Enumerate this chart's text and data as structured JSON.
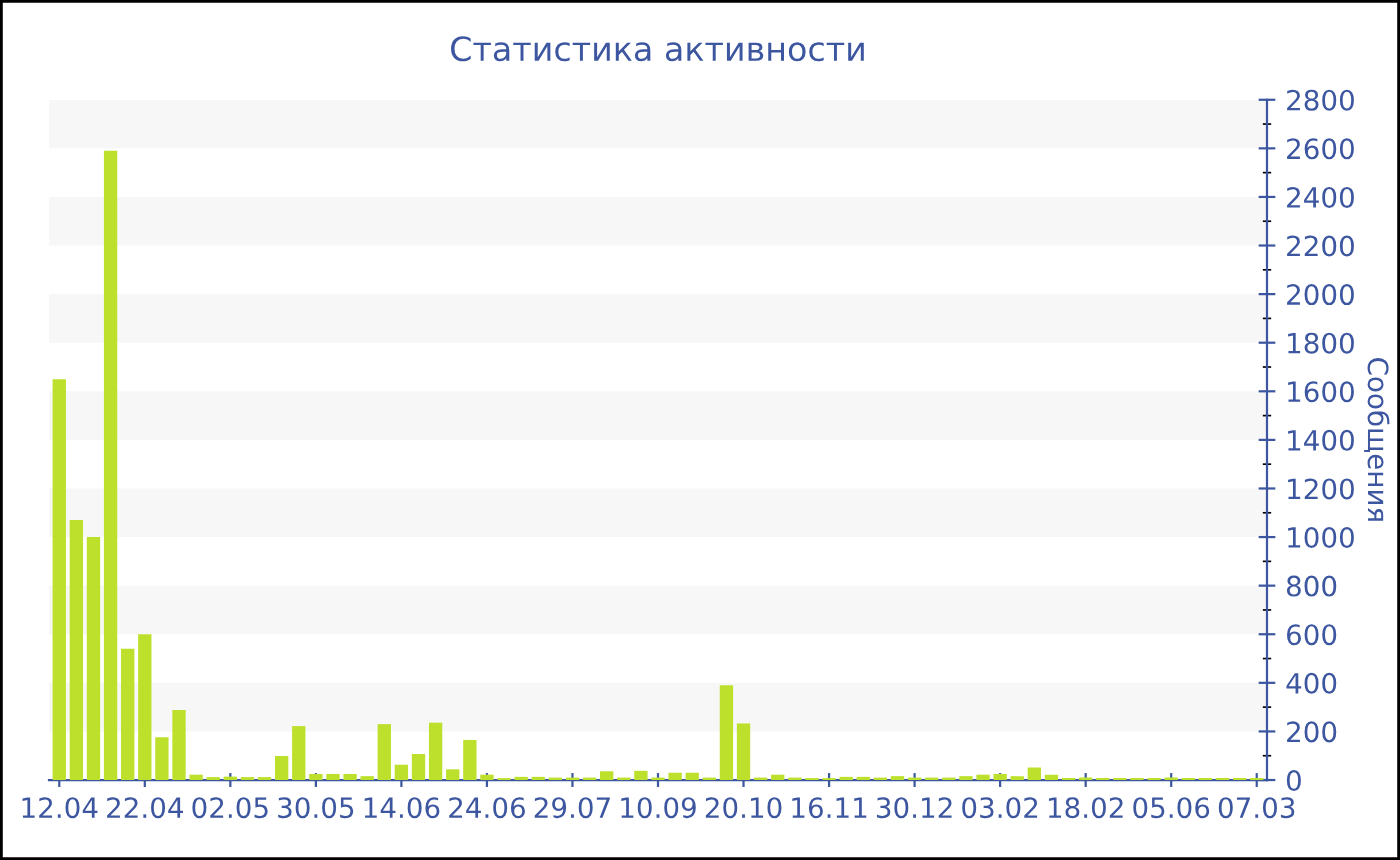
{
  "chart_data": {
    "type": "bar",
    "title": "Статистика активности",
    "ylabel": "Сообщения",
    "categories": [
      "12.04",
      null,
      null,
      null,
      null,
      "22.04",
      null,
      null,
      null,
      null,
      "02.05",
      null,
      null,
      null,
      null,
      "30.05",
      null,
      null,
      null,
      null,
      "14.06",
      null,
      null,
      null,
      null,
      "24.06",
      null,
      null,
      null,
      null,
      "29.07",
      null,
      null,
      null,
      null,
      "10.09",
      null,
      null,
      null,
      null,
      "20.10",
      null,
      null,
      null,
      null,
      "16.11",
      null,
      null,
      null,
      null,
      "30.12",
      null,
      null,
      null,
      null,
      "03.02",
      null,
      null,
      null,
      null,
      "18.02",
      null,
      null,
      null,
      null,
      "05.06",
      null,
      null,
      null,
      null,
      "07.03"
    ],
    "values": [
      1650,
      1070,
      1000,
      2590,
      540,
      600,
      176,
      288,
      22,
      12,
      14,
      12,
      12,
      99,
      222,
      25,
      25,
      25,
      16,
      230,
      63,
      107,
      236,
      44,
      165,
      22,
      8,
      13,
      13,
      10,
      10,
      10,
      36,
      10,
      38,
      10,
      30,
      30,
      10,
      390,
      233,
      10,
      22,
      10,
      8,
      8,
      13,
      13,
      10,
      16,
      10,
      10,
      10,
      16,
      22,
      25,
      16,
      52,
      22,
      8,
      10,
      8,
      8,
      8,
      8,
      10,
      8,
      8,
      8,
      8,
      8
    ],
    "color": "#bde02c",
    "ylim": [
      0,
      2800
    ],
    "yticks": [
      0,
      200,
      400,
      600,
      800,
      1000,
      1200,
      1400,
      1600,
      1800,
      2000,
      2200,
      2400,
      2600,
      2800
    ],
    "bands": [
      {
        "axis": "y",
        "from": 200,
        "to": 400,
        "color": "#f7f7f7"
      },
      {
        "axis": "y",
        "from": 600,
        "to": 800,
        "color": "#f7f7f7"
      },
      {
        "axis": "y",
        "from": 1000,
        "to": 1200,
        "color": "#f7f7f7"
      },
      {
        "axis": "y",
        "from": 1400,
        "to": 1600,
        "color": "#f7f7f7"
      },
      {
        "axis": "y",
        "from": 1800,
        "to": 2000,
        "color": "#f7f7f7"
      },
      {
        "axis": "y",
        "from": 2200,
        "to": 2400,
        "color": "#f7f7f7"
      },
      {
        "axis": "y",
        "from": 2600,
        "to": 2800,
        "color": "#f7f7f7"
      }
    ],
    "grid": false,
    "legend": false
  }
}
